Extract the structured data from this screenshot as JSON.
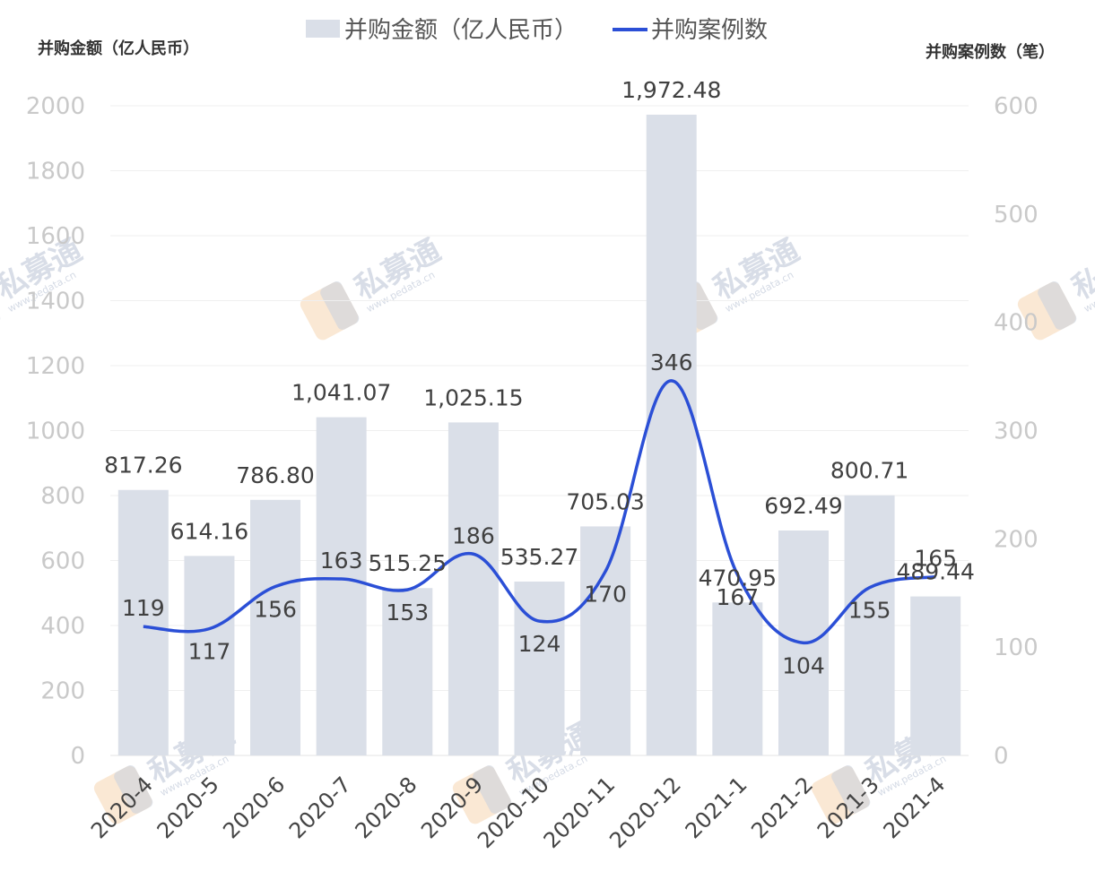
{
  "watermark": {
    "brand": "私募通",
    "url": "www.pedata.cn"
  },
  "chart_data": {
    "type": "bar",
    "title": "",
    "legend": {
      "position": "top-center",
      "bar_label": "并购金额（亿人民币）",
      "line_label": "并购案例数"
    },
    "y_left": {
      "label": "并购金额（亿人民币）",
      "min": 0,
      "max": 2000,
      "ticks": [
        0,
        200,
        400,
        600,
        800,
        1000,
        1200,
        1400,
        1600,
        1800,
        2000
      ]
    },
    "y_right": {
      "label": "并购案例数（笔）",
      "min": 0,
      "max": 600,
      "ticks": [
        0,
        100,
        200,
        300,
        400,
        500,
        600
      ]
    },
    "categories": [
      "2020-4",
      "2020-5",
      "2020-6",
      "2020-7",
      "2020-8",
      "2020-9",
      "2020-10",
      "2020-11",
      "2020-12",
      "2021-1",
      "2021-2",
      "2021-3",
      "2021-4"
    ],
    "series": [
      {
        "name": "并购金额（亿人民币）",
        "type": "bar",
        "axis": "left",
        "color": "#dadfe8",
        "values": [
          817.26,
          614.16,
          786.8,
          1041.07,
          515.25,
          1025.15,
          535.27,
          705.03,
          1972.48,
          470.95,
          692.49,
          800.71,
          489.44
        ],
        "labels": [
          "817.26",
          "614.16",
          "786.80",
          "1,041.07",
          "515.25",
          "1,025.15",
          "535.27",
          "705.03",
          "1,972.48",
          "470.95",
          "692.49",
          "800.71",
          "489.44"
        ]
      },
      {
        "name": "并购案例数",
        "type": "line",
        "axis": "right",
        "color": "#2b4fd6",
        "values": [
          119,
          117,
          156,
          163,
          153,
          186,
          124,
          170,
          346,
          167,
          104,
          155,
          165
        ],
        "labels": [
          "119",
          "117",
          "156",
          "163",
          "153",
          "186",
          "124",
          "170",
          "346",
          "167",
          "104",
          "155",
          "165"
        ]
      }
    ],
    "grid": true
  }
}
